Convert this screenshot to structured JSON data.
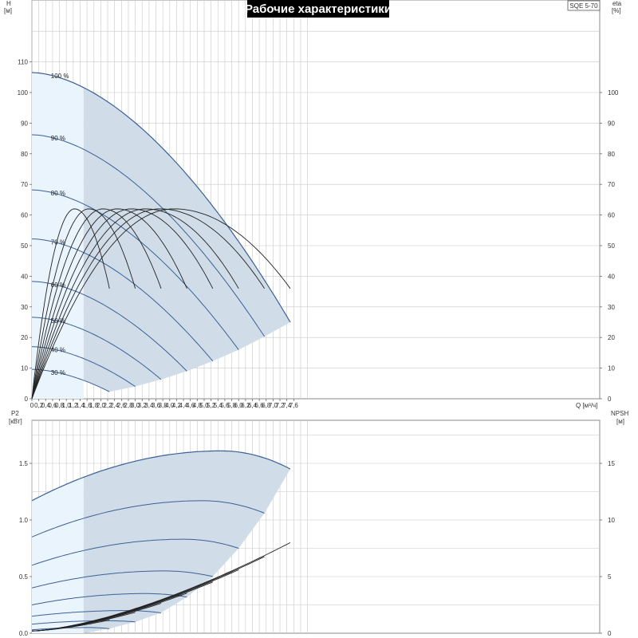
{
  "title": "Рабочие характеристики",
  "model": "SQE 5-70",
  "colors": {
    "background": "#ffffff",
    "grid": "#c8c8c8",
    "area_light": "#eaf4fc",
    "area_dark": "#d0dde8",
    "head_curve": "#3b6096",
    "eff_curve": "#222222",
    "title_bg": "#000000"
  },
  "chart_data": [
    {
      "name": "head-efficiency",
      "type": "line",
      "x_label": "Q [м³/ч]",
      "y_label_left": [
        "H",
        "[м]"
      ],
      "y_label_right": [
        "eta",
        "[%]"
      ],
      "xlim": [
        0,
        8.2
      ],
      "ylim": [
        0,
        130
      ],
      "x_ticks": [
        "0",
        "0,2",
        "0,4",
        "0,6",
        "0,8",
        "1,0",
        "1,2",
        "1,4",
        "1,6",
        "1,8",
        "2,0",
        "2,2",
        "2,4",
        "2,6",
        "2,8",
        "3,0",
        "3,2",
        "3,4",
        "3,6",
        "3,8",
        "4,0",
        "4,2",
        "4,4",
        "4,6",
        "4,8",
        "5,0",
        "5,2",
        "5,4",
        "5,6",
        "5,8",
        "6,0",
        "6,2",
        "6,4",
        "6,6",
        "6,8",
        "7,0",
        "7,2",
        "7,4",
        "7,6"
      ],
      "y_ticks_left": [
        0,
        10,
        20,
        30,
        40,
        50,
        60,
        70,
        80,
        90,
        100,
        110
      ],
      "y_ticks_right": [
        0,
        10,
        20,
        30,
        40,
        50,
        60,
        70,
        80,
        90,
        100
      ],
      "light_region_end_q": 1.5,
      "speed_curves": [
        {
          "label": "100 %",
          "q_max": 7.5,
          "h0": 106.5,
          "h_end": 25
        },
        {
          "label": "90 %",
          "q_max": 6.75,
          "h0": 86.2,
          "h_end": 20.3
        },
        {
          "label": "80 %",
          "q_max": 6.0,
          "h0": 68.2,
          "h_end": 16
        },
        {
          "label": "70 %",
          "q_max": 5.25,
          "h0": 52.2,
          "h_end": 12.3
        },
        {
          "label": "60 %",
          "q_max": 4.5,
          "h0": 38.3,
          "h_end": 9
        },
        {
          "label": "50 %",
          "q_max": 3.75,
          "h0": 26.6,
          "h_end": 6.3
        },
        {
          "label": "40 %",
          "q_max": 3.0,
          "h0": 17,
          "h_end": 4
        },
        {
          "label": "30 %",
          "q_max": 2.25,
          "h0": 9.6,
          "h_end": 2.3
        }
      ],
      "efficiency_peak": 62,
      "efficiency_end": 36
    },
    {
      "name": "power-npsh",
      "type": "line",
      "y_label_left": [
        "P2",
        "[кВт]"
      ],
      "y_label_right": [
        "NPSH",
        "[м]"
      ],
      "xlim": [
        0,
        8.2
      ],
      "ylim": [
        0,
        2.0
      ],
      "y_ticks_left": [
        "0.0",
        "0.5",
        "1.0",
        "1.5"
      ],
      "y_ticks_right": [
        "0",
        "5",
        "10",
        "15"
      ],
      "power_curves": [
        {
          "p0": 1.17,
          "pmax": 1.61,
          "qpeak": 5.5,
          "pend": 1.45
        },
        {
          "p0": 0.85,
          "pmax": 1.17,
          "qpeak": 4.95,
          "pend": 1.06
        },
        {
          "p0": 0.6,
          "pmax": 0.83,
          "qpeak": 4.4,
          "pend": 0.75
        },
        {
          "p0": 0.4,
          "pmax": 0.55,
          "qpeak": 3.85,
          "pend": 0.5
        },
        {
          "p0": 0.25,
          "pmax": 0.35,
          "qpeak": 3.3,
          "pend": 0.32
        },
        {
          "p0": 0.15,
          "pmax": 0.2,
          "qpeak": 2.75,
          "pend": 0.18
        },
        {
          "p0": 0.08,
          "pmax": 0.11,
          "qpeak": 2.2,
          "pend": 0.1
        },
        {
          "p0": 0.03,
          "pmax": 0.05,
          "qpeak": 1.65,
          "pend": 0.04
        }
      ],
      "npsh_end": 0.8
    }
  ]
}
